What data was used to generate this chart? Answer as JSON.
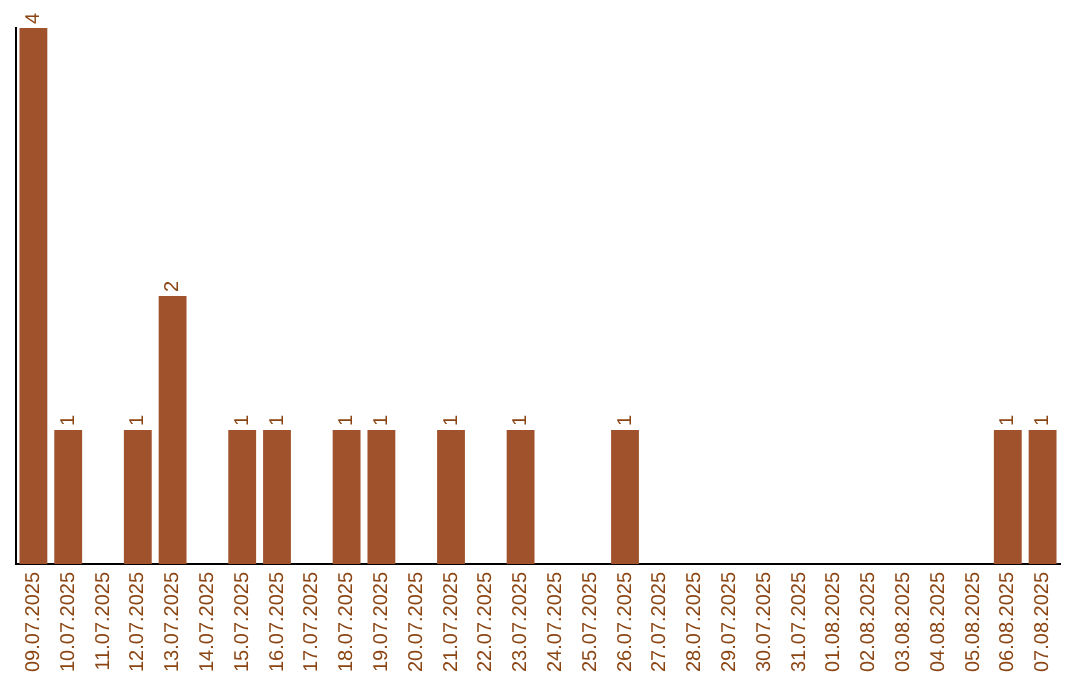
{
  "chart_data": {
    "type": "bar",
    "categories": [
      "09.07.2025",
      "10.07.2025",
      "11.07.2025",
      "12.07.2025",
      "13.07.2025",
      "14.07.2025",
      "15.07.2025",
      "16.07.2025",
      "17.07.2025",
      "18.07.2025",
      "19.07.2025",
      "20.07.2025",
      "21.07.2025",
      "22.07.2025",
      "23.07.2025",
      "24.07.2025",
      "25.07.2025",
      "26.07.2025",
      "27.07.2025",
      "28.07.2025",
      "29.07.2025",
      "30.07.2025",
      "31.07.2025",
      "01.08.2025",
      "02.08.2025",
      "03.08.2025",
      "04.08.2025",
      "05.08.2025",
      "06.08.2025",
      "07.08.2025"
    ],
    "values": [
      4,
      1,
      0,
      1,
      2,
      0,
      1,
      1,
      0,
      1,
      1,
      0,
      1,
      0,
      1,
      0,
      0,
      1,
      0,
      0,
      0,
      0,
      0,
      0,
      0,
      0,
      0,
      0,
      1,
      1
    ],
    "value_labels": [
      "4",
      "1",
      null,
      "1",
      "2",
      null,
      "1",
      "1",
      null,
      "1",
      "1",
      null,
      "1",
      null,
      "1",
      null,
      null,
      "1",
      null,
      null,
      null,
      null,
      null,
      null,
      null,
      null,
      null,
      null,
      "1",
      "1"
    ],
    "color": "#a0522d",
    "grid": false,
    "legend": false
  }
}
